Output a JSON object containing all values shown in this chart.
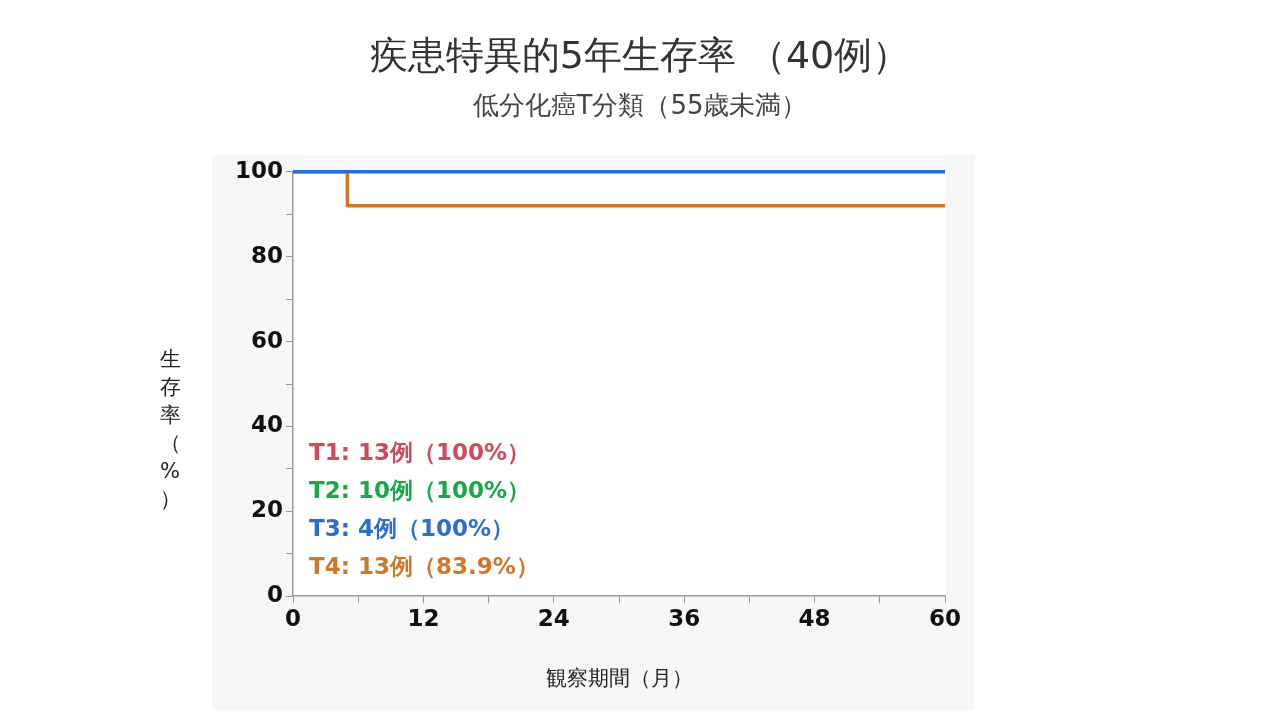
{
  "chart_data": {
    "type": "step",
    "title": "疾患特異的5年生存率 （40例）",
    "subtitle": "低分化癌T分類（55歳未満）",
    "xlabel": "観察期間（月）",
    "ylabel": "生存率（%）",
    "x": [
      0,
      5,
      60
    ],
    "series": [
      {
        "name": "T1: 13例（100%）",
        "color": "#d04a5c",
        "values": [
          null,
          null,
          null
        ]
      },
      {
        "name": "T2: 10例（100%）",
        "color": "#18a84a",
        "values": [
          null,
          null,
          null
        ]
      },
      {
        "name": "T3: 4例（100%）",
        "color": "#2a6fcc",
        "x": [
          0,
          60
        ],
        "values": [
          100,
          100
        ]
      },
      {
        "name": "T4: 13例（83.9%）",
        "color": "#d0782a",
        "values": [
          100,
          92,
          92
        ]
      }
    ],
    "xlim": [
      0,
      60
    ],
    "xticks": [
      0,
      {
        "value": 6,
        "label": null
      },
      12,
      {
        "value": 18,
        "label": null
      },
      24,
      {
        "value": 30,
        "label": null
      },
      36,
      {
        "value": 42,
        "label": null
      },
      48,
      {
        "value": 54,
        "label": null
      },
      60
    ],
    "ylim": [
      0,
      100
    ],
    "yticks": [
      0,
      {
        "value": 10,
        "label": null
      },
      20,
      {
        "value": 30,
        "label": null
      },
      40,
      {
        "value": 50,
        "label": null
      },
      60,
      {
        "value": 70,
        "label": null
      },
      80,
      {
        "value": 90,
        "label": null
      },
      100
    ],
    "grid": false,
    "legend": "bottom left",
    "marker": "none",
    "line_style": "solid"
  }
}
